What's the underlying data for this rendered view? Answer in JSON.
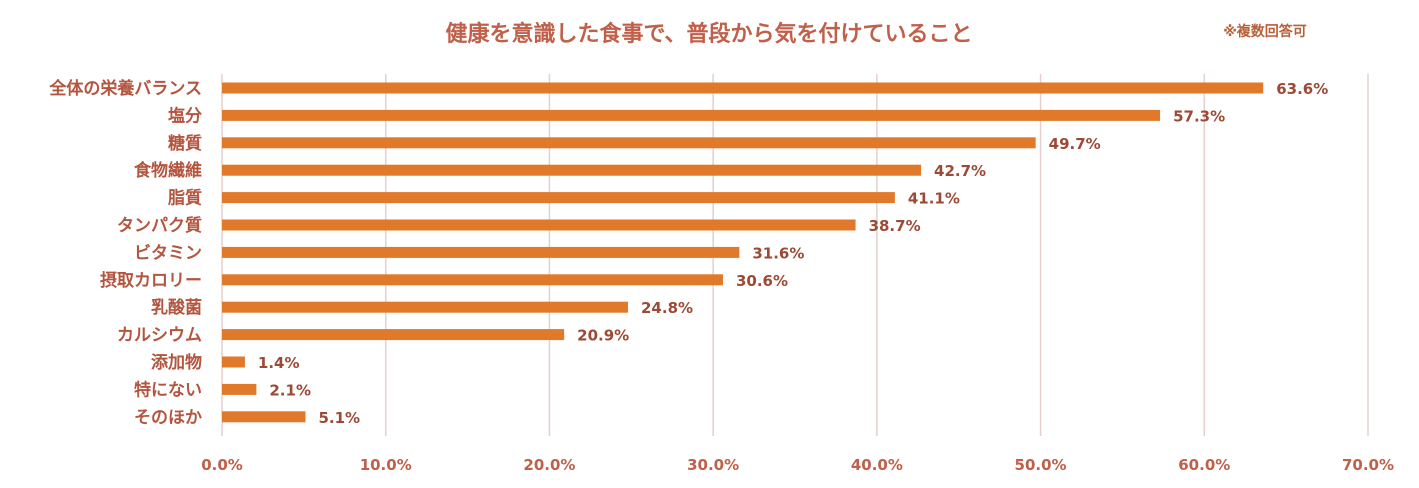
{
  "chart_data": {
    "type": "bar",
    "orientation": "horizontal",
    "title": "健康を意識した食事で、普段から気を付けていること",
    "note": "※複数回答可",
    "categories": [
      "全体の栄養バランス",
      "塩分",
      "糖質",
      "食物繊維",
      "脂質",
      "タンパク質",
      "ビタミン",
      "摂取カロリー",
      "乳酸菌",
      "カルシウム",
      "添加物",
      "特にない",
      "そのほか"
    ],
    "values": [
      63.6,
      57.3,
      49.7,
      42.7,
      41.1,
      38.7,
      31.6,
      30.6,
      24.8,
      20.9,
      1.4,
      2.1,
      5.1
    ],
    "value_labels": [
      "63.6%",
      "57.3%",
      "49.7%",
      "42.7%",
      "41.1%",
      "38.7%",
      "31.6%",
      "30.6%",
      "24.8%",
      "20.9%",
      "1.4%",
      "2.1%",
      "5.1%"
    ],
    "xlim": [
      0,
      70
    ],
    "ticks": [
      "0.0%",
      "10.0%",
      "20.0%",
      "30.0%",
      "40.0%",
      "50.0%",
      "60.0%",
      "70.0%"
    ],
    "grid": true,
    "legend": "none",
    "colors": {
      "bar": "#E07A2A",
      "title": "#C0604A",
      "category_text": "#B3553F",
      "value_text": "#9C4A35",
      "tick_text": "#C0604A",
      "note_text": "#B8603A",
      "grid": "#E6CFCC"
    }
  }
}
